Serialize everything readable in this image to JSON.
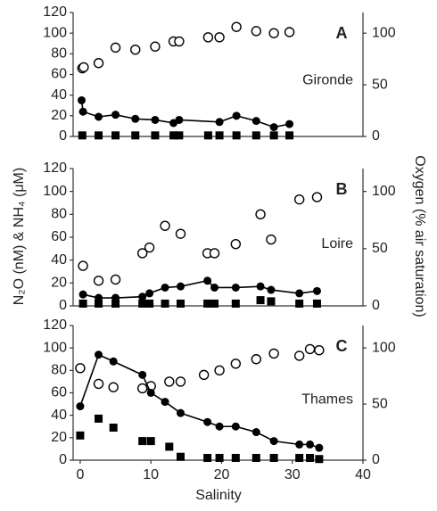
{
  "y_label": "N₂O (nM) & NH₄ (μM)",
  "y2_label": "Oxygen (% air saturation)",
  "x_label": "Salinity",
  "chart_data": [
    {
      "type": "scatter",
      "title": "A",
      "annotation": "Gironde",
      "xlim": [
        -1,
        40
      ],
      "ylim": [
        0,
        120
      ],
      "yticks": [
        0,
        20,
        40,
        60,
        80,
        100,
        120
      ],
      "y2lim": [
        0,
        120
      ],
      "y2ticks": [
        0,
        50,
        100
      ],
      "series": [
        {
          "axis": "y2",
          "marker": "open-circle",
          "line": false,
          "color": "#000000",
          "x": [
            0.3,
            0.5,
            2.6,
            5,
            7.8,
            10.6,
            13.2,
            14,
            18.1,
            19.7,
            22.1,
            24.9,
            27.4,
            29.6
          ],
          "values": [
            66,
            67,
            71,
            86,
            84,
            87,
            92,
            92,
            96,
            96,
            106,
            102,
            100,
            101
          ]
        },
        {
          "marker": "circle",
          "line": true,
          "color": "#000000",
          "x": [
            0.2,
            0.4,
            2.6,
            5,
            7.8,
            10.6,
            13.2,
            14,
            19.7,
            22.1,
            24.9,
            27.4,
            29.6
          ],
          "values": [
            35,
            24,
            19,
            21,
            17,
            16,
            13,
            16,
            14,
            20,
            15,
            9,
            12
          ]
        },
        {
          "marker": "square",
          "line": false,
          "color": "#000000",
          "x": [
            0.3,
            2.6,
            5,
            7.8,
            10.6,
            13.2,
            14,
            18.1,
            19.7,
            22.1,
            24.9,
            27.4,
            29.6
          ],
          "values": [
            1,
            1,
            1,
            1,
            1,
            1,
            1,
            1,
            1,
            1,
            1,
            1,
            1
          ]
        }
      ]
    },
    {
      "type": "scatter",
      "title": "B",
      "annotation": "Loire",
      "xlim": [
        -1,
        40
      ],
      "ylim": [
        0,
        120
      ],
      "yticks": [
        0,
        20,
        40,
        60,
        80,
        100,
        120
      ],
      "y2lim": [
        0,
        120
      ],
      "y2ticks": [
        0,
        50,
        100
      ],
      "series": [
        {
          "axis": "y2",
          "marker": "open-circle",
          "line": false,
          "color": "#000000",
          "x": [
            0.4,
            2.6,
            5,
            8.8,
            9.8,
            12,
            14.2,
            18,
            19,
            22,
            25.5,
            27,
            31,
            33.5
          ],
          "values": [
            35,
            22,
            23,
            46,
            51,
            70,
            63,
            46,
            46,
            54,
            80,
            58,
            93,
            95
          ]
        },
        {
          "marker": "circle",
          "line": true,
          "color": "#000000",
          "x": [
            0.4,
            2.6,
            5,
            8.8,
            9.8,
            12,
            14.2,
            18,
            19,
            22,
            25.5,
            27,
            31,
            33.5
          ],
          "values": [
            10,
            7,
            7,
            8,
            11,
            16,
            17,
            22,
            16,
            16,
            17,
            14,
            11,
            13
          ]
        },
        {
          "marker": "square",
          "line": false,
          "color": "#000000",
          "x": [
            0.4,
            2.6,
            5,
            8.8,
            9.8,
            12,
            14.2,
            18,
            19,
            22,
            25.5,
            27,
            31,
            33.5
          ],
          "values": [
            2,
            2,
            2,
            2,
            2,
            2,
            2,
            2,
            2,
            2,
            5,
            4,
            2,
            2
          ]
        }
      ]
    },
    {
      "type": "scatter",
      "title": "C",
      "annotation": "Thames",
      "xlim": [
        -1,
        40
      ],
      "ylim": [
        0,
        120
      ],
      "yticks": [
        0,
        20,
        40,
        60,
        80,
        100,
        120
      ],
      "y2lim": [
        0,
        120
      ],
      "y2ticks": [
        0,
        50,
        100
      ],
      "xticks": [
        0,
        10,
        20,
        30,
        40
      ],
      "series": [
        {
          "axis": "y2",
          "marker": "open-circle",
          "line": false,
          "color": "#000000",
          "x": [
            0,
            2.6,
            4.7,
            8.8,
            10,
            12.6,
            14.2,
            17.5,
            19.7,
            22,
            24.9,
            27.4,
            31,
            32.5,
            33.8
          ],
          "values": [
            82,
            68,
            65,
            64,
            66,
            70,
            70,
            76,
            80,
            86,
            90,
            95,
            93,
            99,
            98
          ]
        },
        {
          "marker": "circle",
          "line": true,
          "color": "#000000",
          "x": [
            0,
            2.6,
            4.7,
            8.8,
            10,
            12,
            14.2,
            18,
            19.7,
            22,
            24.9,
            27.4,
            31,
            32.5,
            33.8
          ],
          "values": [
            48,
            94,
            88,
            76,
            60,
            52,
            42,
            34,
            30,
            30,
            25,
            17,
            14,
            14,
            11
          ]
        },
        {
          "marker": "square",
          "line": false,
          "color": "#000000",
          "x": [
            0,
            2.6,
            4.7,
            8.8,
            10,
            12.6,
            14.2,
            18,
            19.7,
            22,
            24.9,
            27.4,
            31,
            32.5,
            33.8
          ],
          "values": [
            22,
            37,
            29,
            17,
            17,
            12,
            3,
            2,
            2,
            2,
            2,
            2,
            2,
            2,
            1
          ]
        }
      ]
    }
  ]
}
